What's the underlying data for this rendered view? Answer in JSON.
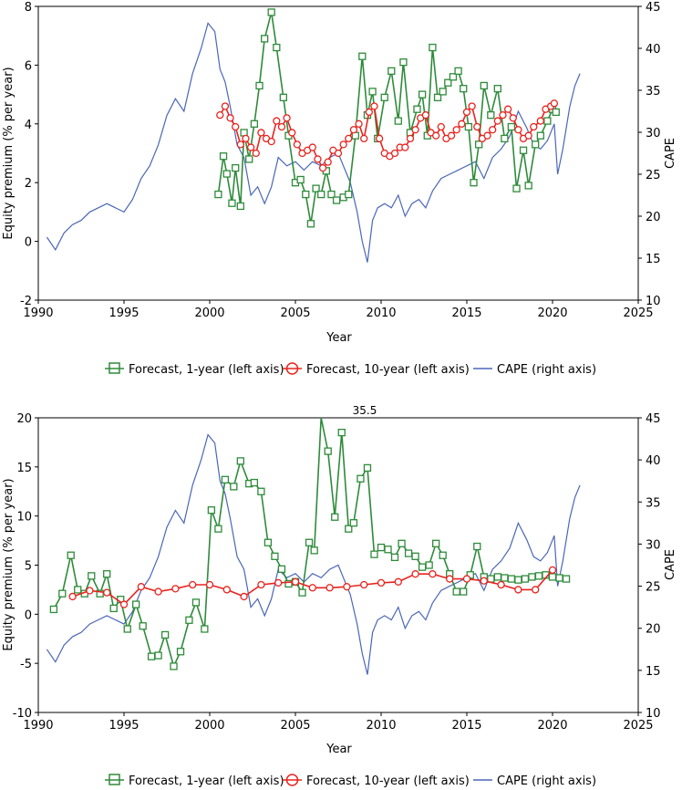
{
  "colors": {
    "forecast_1yr": "#2e8b3a",
    "forecast_10yr": "#e8231e",
    "cape": "#4a66b8",
    "axis": "#000000"
  },
  "chart_data": [
    {
      "type": "line",
      "ylabel": "Equity premium (% per year)",
      "y2label": "CAPE",
      "xlabel": "Year",
      "xlim": [
        1990,
        2025
      ],
      "ylim": [
        -2,
        8
      ],
      "y2lim": [
        10,
        45
      ],
      "xticks": [
        "1990",
        "1995",
        "2000",
        "2005",
        "2010",
        "2015",
        "2020",
        "2025"
      ],
      "yticks": [
        "-2",
        "0",
        "2",
        "4",
        "6",
        "8"
      ],
      "y2ticks": [
        "10",
        "15",
        "20",
        "25",
        "30",
        "35",
        "40",
        "45"
      ],
      "legend": [
        "Forecast, 1-year (left axis)",
        "Forecast, 10-year (left axis)",
        "CAPE (right axis)"
      ],
      "legend_position": "bottom",
      "series": [
        {
          "name": "CAPE (right axis)",
          "axis": "right",
          "style": "line",
          "x": [
            1990.5,
            1991.0,
            1991.5,
            1992.0,
            1992.5,
            1993.0,
            1993.5,
            1994.0,
            1994.5,
            1995.0,
            1995.5,
            1996.0,
            1996.5,
            1997.0,
            1997.5,
            1998.0,
            1998.5,
            1999.0,
            1999.5,
            1999.9,
            2000.3,
            2000.6,
            2000.9,
            2001.2,
            2001.6,
            2002.0,
            2002.4,
            2002.8,
            2003.2,
            2003.6,
            2004.0,
            2004.5,
            2005.0,
            2005.5,
            2006.0,
            2006.5,
            2007.0,
            2007.5,
            2007.8,
            2008.2,
            2008.6,
            2008.9,
            2009.2,
            2009.5,
            2009.8,
            2010.2,
            2010.6,
            2011.0,
            2011.4,
            2011.8,
            2012.2,
            2012.6,
            2013.0,
            2013.5,
            2014.0,
            2014.5,
            2015.0,
            2015.5,
            2016.0,
            2016.5,
            2017.0,
            2017.5,
            2018.0,
            2018.5,
            2018.9,
            2019.3,
            2019.7,
            2020.1,
            2020.3,
            2020.6,
            2021.0,
            2021.3,
            2021.6
          ],
          "y": [
            17.5,
            16,
            18,
            19,
            19.5,
            20.5,
            21,
            21.5,
            21,
            20.5,
            22,
            24.5,
            26,
            28.5,
            32,
            34,
            32.5,
            37,
            40,
            43,
            42,
            37.5,
            36,
            33,
            28.5,
            27,
            22.5,
            23.5,
            21.5,
            23.5,
            27,
            26,
            26.5,
            25.5,
            26.5,
            26,
            27,
            27.5,
            26,
            24,
            20.5,
            17,
            14.5,
            19.5,
            21,
            21.5,
            21,
            22.5,
            20,
            21.5,
            22,
            21,
            23,
            24.5,
            25,
            25.5,
            26,
            26.5,
            24.5,
            27,
            28,
            29.5,
            32.5,
            30.5,
            28.5,
            28,
            29,
            31,
            25,
            28,
            33,
            35.5,
            37
          ]
        },
        {
          "name": "Forecast, 1-year (left axis)",
          "axis": "left",
          "style": "square-markers",
          "x": [
            2000.5,
            2000.8,
            2001.0,
            2001.3,
            2001.5,
            2001.8,
            2002.0,
            2002.3,
            2002.6,
            2002.9,
            2003.2,
            2003.6,
            2003.9,
            2004.3,
            2004.6,
            2005.0,
            2005.3,
            2005.6,
            2005.9,
            2006.2,
            2006.5,
            2006.8,
            2007.1,
            2007.4,
            2007.8,
            2008.1,
            2008.5,
            2008.9,
            2009.2,
            2009.5,
            2009.8,
            2010.2,
            2010.6,
            2011.0,
            2011.3,
            2011.7,
            2012.1,
            2012.4,
            2012.7,
            2013.0,
            2013.3,
            2013.6,
            2013.9,
            2014.2,
            2014.5,
            2014.8,
            2015.1,
            2015.4,
            2015.7,
            2016.0,
            2016.4,
            2016.8,
            2017.2,
            2017.6,
            2017.9,
            2018.3,
            2018.6,
            2019.0,
            2019.3,
            2019.7,
            2020.0,
            2020.2
          ],
          "y": [
            1.6,
            2.9,
            2.3,
            1.3,
            2.5,
            1.2,
            3.7,
            2.8,
            4.0,
            5.3,
            6.9,
            7.8,
            6.6,
            4.9,
            3.6,
            2.0,
            2.1,
            1.6,
            0.6,
            1.8,
            1.6,
            2.4,
            1.6,
            1.4,
            1.5,
            1.6,
            3.6,
            6.3,
            4.3,
            5.1,
            3.5,
            4.9,
            5.8,
            4.1,
            6.1,
            3.7,
            4.5,
            5.0,
            3.6,
            6.6,
            4.9,
            5.1,
            5.4,
            5.6,
            5.8,
            5.2,
            3.9,
            2.0,
            3.3,
            5.3,
            4.3,
            5.2,
            3.5,
            3.9,
            1.8,
            3.1,
            1.9,
            3.3,
            3.6,
            4.1,
            4.5,
            4.4
          ]
        },
        {
          "name": "Forecast, 10-year (left axis)",
          "axis": "left",
          "style": "circle-markers",
          "x": [
            2000.6,
            2000.9,
            2001.2,
            2001.5,
            2001.8,
            2002.1,
            2002.4,
            2002.7,
            2003.0,
            2003.3,
            2003.6,
            2003.9,
            2004.2,
            2004.5,
            2004.8,
            2005.1,
            2005.4,
            2005.7,
            2006.0,
            2006.3,
            2006.6,
            2006.9,
            2007.2,
            2007.5,
            2007.8,
            2008.1,
            2008.4,
            2008.7,
            2009.0,
            2009.3,
            2009.6,
            2009.9,
            2010.2,
            2010.5,
            2010.8,
            2011.1,
            2011.4,
            2011.7,
            2012.0,
            2012.3,
            2012.6,
            2012.9,
            2013.2,
            2013.5,
            2013.8,
            2014.1,
            2014.4,
            2014.7,
            2015.0,
            2015.3,
            2015.6,
            2015.9,
            2016.2,
            2016.5,
            2016.8,
            2017.1,
            2017.4,
            2017.7,
            2018.0,
            2018.3,
            2018.6,
            2018.9,
            2019.3,
            2019.6,
            2019.9,
            2020.1
          ],
          "y": [
            4.3,
            4.6,
            4.2,
            3.9,
            3.3,
            3.5,
            3.2,
            3.0,
            3.7,
            3.5,
            3.4,
            4.1,
            3.9,
            4.2,
            3.7,
            3.3,
            3.0,
            3.1,
            3.2,
            2.8,
            2.5,
            2.7,
            3.1,
            3.0,
            3.3,
            3.5,
            3.8,
            4.0,
            3.5,
            4.4,
            4.6,
            3.5,
            3.0,
            2.9,
            3.0,
            3.2,
            3.2,
            3.5,
            3.8,
            4.2,
            4.3,
            3.7,
            3.6,
            3.9,
            3.5,
            3.6,
            3.8,
            4.0,
            4.4,
            4.6,
            3.9,
            3.5,
            3.6,
            3.8,
            4.1,
            4.3,
            4.5,
            4.2,
            3.8,
            3.5,
            3.6,
            3.9,
            4.1,
            4.5,
            4.6,
            4.7
          ]
        }
      ]
    },
    {
      "type": "line",
      "ylabel": "Equity premium (% per year)",
      "y2label": "CAPE",
      "xlabel": "Year",
      "xlim": [
        1990,
        2025
      ],
      "ylim": [
        -10,
        20
      ],
      "y2lim": [
        10,
        45
      ],
      "xticks": [
        "1990",
        "1995",
        "2000",
        "2005",
        "2010",
        "2015",
        "2020",
        "2025"
      ],
      "yticks": [
        "-10",
        "-5",
        "0",
        "5",
        "10",
        "15",
        "20"
      ],
      "y2ticks": [
        "10",
        "15",
        "20",
        "25",
        "30",
        "35",
        "40",
        "45"
      ],
      "annotation": "35.5",
      "legend": [
        "Forecast, 1-year (left axis)",
        "Forecast, 10-year (left axis)",
        "CAPE (right axis)"
      ],
      "legend_position": "bottom",
      "series": [
        {
          "name": "CAPE (right axis)",
          "axis": "right",
          "style": "line",
          "x": [
            1990.5,
            1991.0,
            1991.5,
            1992.0,
            1992.5,
            1993.0,
            1993.5,
            1994.0,
            1994.5,
            1995.0,
            1995.5,
            1996.0,
            1996.5,
            1997.0,
            1997.5,
            1998.0,
            1998.5,
            1999.0,
            1999.5,
            1999.9,
            2000.3,
            2000.6,
            2000.9,
            2001.2,
            2001.6,
            2002.0,
            2002.4,
            2002.8,
            2003.2,
            2003.6,
            2004.0,
            2004.5,
            2005.0,
            2005.5,
            2006.0,
            2006.5,
            2007.0,
            2007.5,
            2007.8,
            2008.2,
            2008.6,
            2008.9,
            2009.2,
            2009.5,
            2009.8,
            2010.2,
            2010.6,
            2011.0,
            2011.4,
            2011.8,
            2012.2,
            2012.6,
            2013.0,
            2013.5,
            2014.0,
            2014.5,
            2015.0,
            2015.5,
            2016.0,
            2016.5,
            2017.0,
            2017.5,
            2018.0,
            2018.5,
            2018.9,
            2019.3,
            2019.7,
            2020.1,
            2020.3,
            2020.6,
            2021.0,
            2021.3,
            2021.6
          ],
          "y": [
            17.5,
            16,
            18,
            19,
            19.5,
            20.5,
            21,
            21.5,
            21,
            20.5,
            22,
            24.5,
            26,
            28.5,
            32,
            34,
            32.5,
            37,
            40,
            43,
            42,
            37.5,
            36,
            33,
            28.5,
            27,
            22.5,
            23.5,
            21.5,
            23.5,
            27,
            26,
            26.5,
            25.5,
            26.5,
            26,
            27,
            27.5,
            26,
            24,
            20.5,
            17,
            14.5,
            19.5,
            21,
            21.5,
            21,
            22.5,
            20,
            21.5,
            22,
            21,
            23,
            24.5,
            25,
            25.5,
            26,
            26.5,
            24.5,
            27,
            28,
            29.5,
            32.5,
            30.5,
            28.5,
            28,
            29,
            31,
            25,
            28,
            33,
            35.5,
            37
          ]
        },
        {
          "name": "Forecast, 1-year (left axis)",
          "axis": "left",
          "style": "square-markers",
          "x": [
            1990.9,
            1991.4,
            1991.9,
            1992.3,
            1992.7,
            1993.1,
            1993.6,
            1994.0,
            1994.4,
            1994.8,
            1995.2,
            1995.7,
            1996.1,
            1996.6,
            1997.0,
            1997.4,
            1997.9,
            1998.3,
            1998.8,
            1999.2,
            1999.7,
            2000.1,
            2000.5,
            2000.9,
            2001.4,
            2001.8,
            2002.3,
            2002.6,
            2003.0,
            2003.4,
            2003.8,
            2004.2,
            2004.6,
            2005.0,
            2005.4,
            2005.8,
            2006.1,
            2006.5,
            2006.9,
            2007.3,
            2007.7,
            2008.1,
            2008.4,
            2008.8,
            2009.2,
            2009.6,
            2010.0,
            2010.4,
            2010.8,
            2011.2,
            2011.6,
            2012.0,
            2012.4,
            2012.8,
            2013.2,
            2013.6,
            2014.0,
            2014.4,
            2014.8,
            2015.2,
            2015.6,
            2016.0,
            2016.4,
            2016.8,
            2017.2,
            2017.6,
            2018.0,
            2018.4,
            2018.8,
            2019.2,
            2019.6,
            2020.0,
            2020.4,
            2020.8
          ],
          "y": [
            0.5,
            2.1,
            6.0,
            2.5,
            2.1,
            3.9,
            2.1,
            4.1,
            0.6,
            1.5,
            -1.5,
            1.0,
            -1.2,
            -4.3,
            -4.2,
            -2.1,
            -5.3,
            -3.8,
            -0.6,
            1.2,
            -1.5,
            10.6,
            8.7,
            13.7,
            13.0,
            15.6,
            13.3,
            13.4,
            12.5,
            7.3,
            5.9,
            4.6,
            3.1,
            3.3,
            2.2,
            7.3,
            6.5,
            35.5,
            16.6,
            9.9,
            18.5,
            8.7,
            9.3,
            13.8,
            14.9,
            6.1,
            6.8,
            6.6,
            5.8,
            7.2,
            6.2,
            5.9,
            4.8,
            5.0,
            7.2,
            6.0,
            4.1,
            2.3,
            2.3,
            4.0,
            6.9,
            3.8,
            3.6,
            3.8,
            3.7,
            3.6,
            3.5,
            3.6,
            3.8,
            3.9,
            4.0,
            3.8,
            3.7,
            3.6
          ]
        },
        {
          "name": "Forecast, 10-year (left axis)",
          "axis": "left",
          "style": "circle-markers",
          "x": [
            1992.0,
            1993.0,
            1994.0,
            1995.0,
            1996.0,
            1997.0,
            1998.0,
            1999.0,
            2000.0,
            2001.0,
            2002.0,
            2003.0,
            2004.0,
            2005.0,
            2006.0,
            2007.0,
            2008.0,
            2009.0,
            2010.0,
            2011.0,
            2012.0,
            2013.0,
            2014.0,
            2015.0,
            2016.0,
            2017.0,
            2018.0,
            2019.0,
            2020.0
          ],
          "y": [
            1.8,
            2.4,
            2.2,
            1.0,
            2.8,
            2.3,
            2.6,
            3.0,
            3.0,
            2.5,
            1.8,
            3.0,
            3.2,
            3.3,
            2.7,
            2.7,
            2.8,
            3.0,
            3.2,
            3.3,
            4.1,
            4.1,
            3.6,
            3.6,
            3.4,
            3.0,
            2.5,
            2.5,
            4.5
          ]
        }
      ]
    }
  ]
}
